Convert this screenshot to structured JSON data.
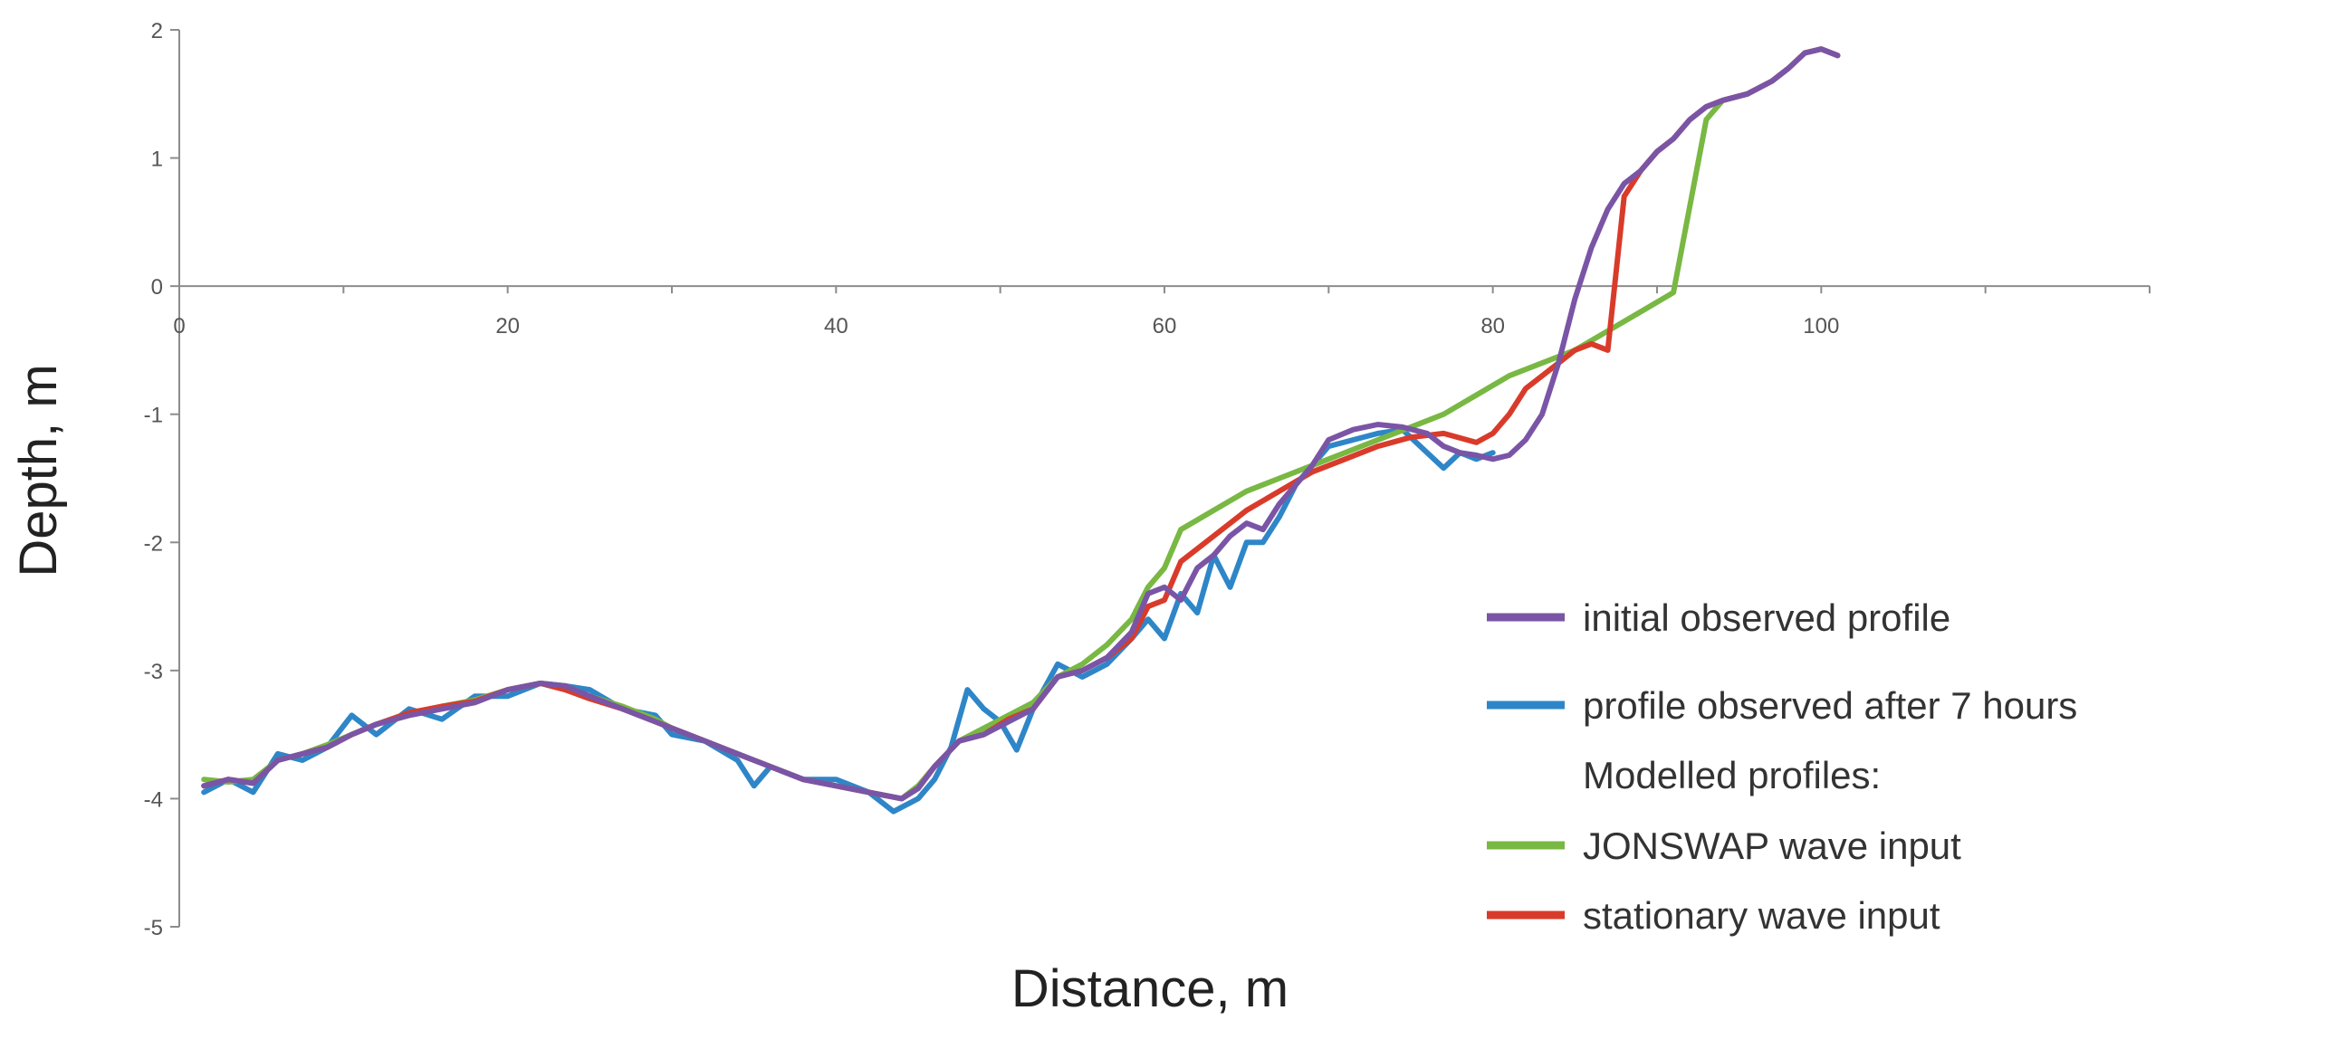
{
  "chart_data": {
    "type": "line",
    "title": "",
    "xlabel": "Distance, m",
    "ylabel": "Depth, m",
    "xlim": [
      0,
      120
    ],
    "ylim": [
      -5,
      2
    ],
    "x_ticks": [
      "0",
      "20",
      "40",
      "60",
      "80",
      "100"
    ],
    "y_ticks": [
      "2",
      "1",
      "0",
      "-1",
      "-2",
      "-3",
      "-4",
      "-5"
    ],
    "grid": false,
    "legend_position": "bottom-right",
    "legend_note": "Modelled profiles:",
    "series": [
      {
        "name": "initial observed profile",
        "color": "#7a55a6",
        "points": [
          [
            1.5,
            -3.9
          ],
          [
            3,
            -3.85
          ],
          [
            4.5,
            -3.88
          ],
          [
            6,
            -3.7
          ],
          [
            7.5,
            -3.65
          ],
          [
            9,
            -3.6
          ],
          [
            10.5,
            -3.5
          ],
          [
            12,
            -3.42
          ],
          [
            14,
            -3.35
          ],
          [
            16,
            -3.3
          ],
          [
            18,
            -3.25
          ],
          [
            20,
            -3.15
          ],
          [
            22,
            -3.1
          ],
          [
            23.5,
            -3.12
          ],
          [
            25,
            -3.2
          ],
          [
            27,
            -3.3
          ],
          [
            29,
            -3.4
          ],
          [
            30,
            -3.45
          ],
          [
            32,
            -3.55
          ],
          [
            34,
            -3.65
          ],
          [
            36,
            -3.75
          ],
          [
            38,
            -3.85
          ],
          [
            40,
            -3.9
          ],
          [
            42,
            -3.95
          ],
          [
            44,
            -4.0
          ],
          [
            45,
            -3.92
          ],
          [
            46,
            -3.75
          ],
          [
            47.5,
            -3.55
          ],
          [
            49,
            -3.5
          ],
          [
            50.5,
            -3.4
          ],
          [
            52,
            -3.3
          ],
          [
            53.5,
            -3.05
          ],
          [
            55,
            -3.0
          ],
          [
            56.5,
            -2.9
          ],
          [
            58,
            -2.7
          ],
          [
            59,
            -2.4
          ],
          [
            60,
            -2.35
          ],
          [
            61,
            -2.45
          ],
          [
            62,
            -2.2
          ],
          [
            63,
            -2.1
          ],
          [
            64,
            -1.95
          ],
          [
            65,
            -1.85
          ],
          [
            66,
            -1.9
          ],
          [
            67,
            -1.7
          ],
          [
            68,
            -1.55
          ],
          [
            69,
            -1.4
          ],
          [
            70,
            -1.2
          ],
          [
            71.5,
            -1.12
          ],
          [
            73,
            -1.08
          ],
          [
            74.5,
            -1.1
          ],
          [
            76,
            -1.15
          ],
          [
            77,
            -1.25
          ],
          [
            78,
            -1.3
          ],
          [
            79,
            -1.32
          ],
          [
            80,
            -1.35
          ],
          [
            81,
            -1.32
          ],
          [
            82,
            -1.2
          ],
          [
            83,
            -1.0
          ],
          [
            84,
            -0.6
          ],
          [
            85,
            -0.1
          ],
          [
            86,
            0.3
          ],
          [
            87,
            0.6
          ],
          [
            88,
            0.8
          ],
          [
            89,
            0.9
          ],
          [
            90,
            1.05
          ],
          [
            91,
            1.15
          ],
          [
            92,
            1.3
          ],
          [
            93,
            1.4
          ],
          [
            94,
            1.45
          ],
          [
            95.5,
            1.5
          ],
          [
            97,
            1.6
          ],
          [
            98,
            1.7
          ],
          [
            99,
            1.82
          ],
          [
            100,
            1.85
          ],
          [
            101,
            1.8
          ]
        ]
      },
      {
        "name": "profile observed after 7 hours",
        "color": "#2e86c8",
        "points": [
          [
            1.5,
            -3.95
          ],
          [
            3,
            -3.85
          ],
          [
            4.5,
            -3.95
          ],
          [
            6,
            -3.65
          ],
          [
            7.5,
            -3.7
          ],
          [
            9,
            -3.6
          ],
          [
            10.5,
            -3.35
          ],
          [
            12,
            -3.5
          ],
          [
            14,
            -3.3
          ],
          [
            16,
            -3.38
          ],
          [
            18,
            -3.2
          ],
          [
            20,
            -3.2
          ],
          [
            22,
            -3.1
          ],
          [
            23.5,
            -3.12
          ],
          [
            25,
            -3.15
          ],
          [
            27,
            -3.3
          ],
          [
            29,
            -3.35
          ],
          [
            30,
            -3.5
          ],
          [
            32,
            -3.55
          ],
          [
            34,
            -3.7
          ],
          [
            35,
            -3.9
          ],
          [
            36,
            -3.75
          ],
          [
            38,
            -3.85
          ],
          [
            40,
            -3.85
          ],
          [
            42,
            -3.95
          ],
          [
            43.5,
            -4.1
          ],
          [
            45,
            -4.0
          ],
          [
            46,
            -3.85
          ],
          [
            47,
            -3.6
          ],
          [
            48,
            -3.15
          ],
          [
            49,
            -3.3
          ],
          [
            50,
            -3.4
          ],
          [
            51,
            -3.62
          ],
          [
            52,
            -3.3
          ],
          [
            53.5,
            -2.95
          ],
          [
            55,
            -3.05
          ],
          [
            56.5,
            -2.95
          ],
          [
            58,
            -2.75
          ],
          [
            59,
            -2.6
          ],
          [
            60,
            -2.75
          ],
          [
            61,
            -2.4
          ],
          [
            62,
            -2.55
          ],
          [
            63,
            -2.1
          ],
          [
            64,
            -2.35
          ],
          [
            65,
            -2.0
          ],
          [
            66,
            -2.0
          ],
          [
            67,
            -1.8
          ],
          [
            68,
            -1.55
          ],
          [
            69,
            -1.4
          ],
          [
            70,
            -1.25
          ],
          [
            71.5,
            -1.2
          ],
          [
            73,
            -1.15
          ],
          [
            74.5,
            -1.12
          ],
          [
            76,
            -1.3
          ],
          [
            77,
            -1.42
          ],
          [
            78,
            -1.3
          ],
          [
            79,
            -1.35
          ],
          [
            80,
            -1.3
          ]
        ]
      },
      {
        "name": "JONSWAP wave input",
        "color": "#78b843",
        "points": [
          [
            1.5,
            -3.85
          ],
          [
            3,
            -3.87
          ],
          [
            4.5,
            -3.85
          ],
          [
            6,
            -3.7
          ],
          [
            7.5,
            -3.65
          ],
          [
            9,
            -3.58
          ],
          [
            10.5,
            -3.5
          ],
          [
            12,
            -3.42
          ],
          [
            14,
            -3.35
          ],
          [
            16,
            -3.28
          ],
          [
            18,
            -3.23
          ],
          [
            20,
            -3.15
          ],
          [
            22,
            -3.1
          ],
          [
            23.5,
            -3.12
          ],
          [
            25,
            -3.2
          ],
          [
            27,
            -3.28
          ],
          [
            29,
            -3.38
          ],
          [
            30,
            -3.45
          ],
          [
            32,
            -3.55
          ],
          [
            34,
            -3.65
          ],
          [
            36,
            -3.75
          ],
          [
            38,
            -3.85
          ],
          [
            40,
            -3.9
          ],
          [
            42,
            -3.95
          ],
          [
            44,
            -4.0
          ],
          [
            45,
            -3.9
          ],
          [
            46,
            -3.75
          ],
          [
            47.5,
            -3.55
          ],
          [
            49,
            -3.45
          ],
          [
            50.5,
            -3.35
          ],
          [
            52,
            -3.25
          ],
          [
            53.5,
            -3.05
          ],
          [
            55,
            -2.95
          ],
          [
            56.5,
            -2.8
          ],
          [
            58,
            -2.6
          ],
          [
            59,
            -2.35
          ],
          [
            60,
            -2.2
          ],
          [
            61,
            -1.9
          ],
          [
            63,
            -1.75
          ],
          [
            65,
            -1.6
          ],
          [
            67,
            -1.5
          ],
          [
            69,
            -1.4
          ],
          [
            71,
            -1.3
          ],
          [
            73,
            -1.2
          ],
          [
            75,
            -1.1
          ],
          [
            77,
            -1.0
          ],
          [
            79,
            -0.85
          ],
          [
            81,
            -0.7
          ],
          [
            83,
            -0.6
          ],
          [
            85,
            -0.5
          ],
          [
            87,
            -0.35
          ],
          [
            89,
            -0.2
          ],
          [
            91,
            -0.05
          ],
          [
            93,
            1.3
          ],
          [
            94,
            1.45
          ],
          [
            95.5,
            1.5
          ],
          [
            97,
            1.6
          ],
          [
            98,
            1.7
          ],
          [
            99,
            1.82
          ],
          [
            100,
            1.85
          ],
          [
            101,
            1.8
          ]
        ]
      },
      {
        "name": "stationary wave input",
        "color": "#d93b2b",
        "points": [
          [
            1.5,
            -3.9
          ],
          [
            3,
            -3.85
          ],
          [
            4.5,
            -3.88
          ],
          [
            6,
            -3.7
          ],
          [
            7.5,
            -3.65
          ],
          [
            9,
            -3.6
          ],
          [
            10.5,
            -3.5
          ],
          [
            12,
            -3.42
          ],
          [
            14,
            -3.33
          ],
          [
            16,
            -3.28
          ],
          [
            18,
            -3.24
          ],
          [
            20,
            -3.15
          ],
          [
            22,
            -3.1
          ],
          [
            23.5,
            -3.15
          ],
          [
            25,
            -3.22
          ],
          [
            27,
            -3.3
          ],
          [
            29,
            -3.4
          ],
          [
            30,
            -3.45
          ],
          [
            32,
            -3.55
          ],
          [
            34,
            -3.65
          ],
          [
            36,
            -3.75
          ],
          [
            38,
            -3.85
          ],
          [
            40,
            -3.9
          ],
          [
            42,
            -3.95
          ],
          [
            44,
            -4.0
          ],
          [
            45,
            -3.92
          ],
          [
            46,
            -3.75
          ],
          [
            47.5,
            -3.55
          ],
          [
            49,
            -3.5
          ],
          [
            50.5,
            -3.38
          ],
          [
            52,
            -3.3
          ],
          [
            53.5,
            -3.05
          ],
          [
            55,
            -3.0
          ],
          [
            56.5,
            -2.9
          ],
          [
            58,
            -2.75
          ],
          [
            59,
            -2.5
          ],
          [
            60,
            -2.45
          ],
          [
            61,
            -2.15
          ],
          [
            63,
            -1.95
          ],
          [
            65,
            -1.75
          ],
          [
            67,
            -1.6
          ],
          [
            69,
            -1.45
          ],
          [
            71,
            -1.35
          ],
          [
            73,
            -1.25
          ],
          [
            75,
            -1.18
          ],
          [
            77,
            -1.15
          ],
          [
            79,
            -1.22
          ],
          [
            80,
            -1.15
          ],
          [
            81,
            -1.0
          ],
          [
            82,
            -0.8
          ],
          [
            83,
            -0.7
          ],
          [
            84,
            -0.6
          ],
          [
            85,
            -0.5
          ],
          [
            86,
            -0.45
          ],
          [
            87,
            -0.5
          ],
          [
            88,
            0.7
          ],
          [
            89,
            0.9
          ],
          [
            90,
            1.05
          ],
          [
            91,
            1.15
          ],
          [
            92,
            1.3
          ],
          [
            93,
            1.4
          ],
          [
            94,
            1.45
          ],
          [
            95.5,
            1.5
          ],
          [
            97,
            1.6
          ],
          [
            98,
            1.7
          ],
          [
            99,
            1.82
          ],
          [
            100,
            1.85
          ],
          [
            101,
            1.8
          ]
        ]
      }
    ]
  }
}
